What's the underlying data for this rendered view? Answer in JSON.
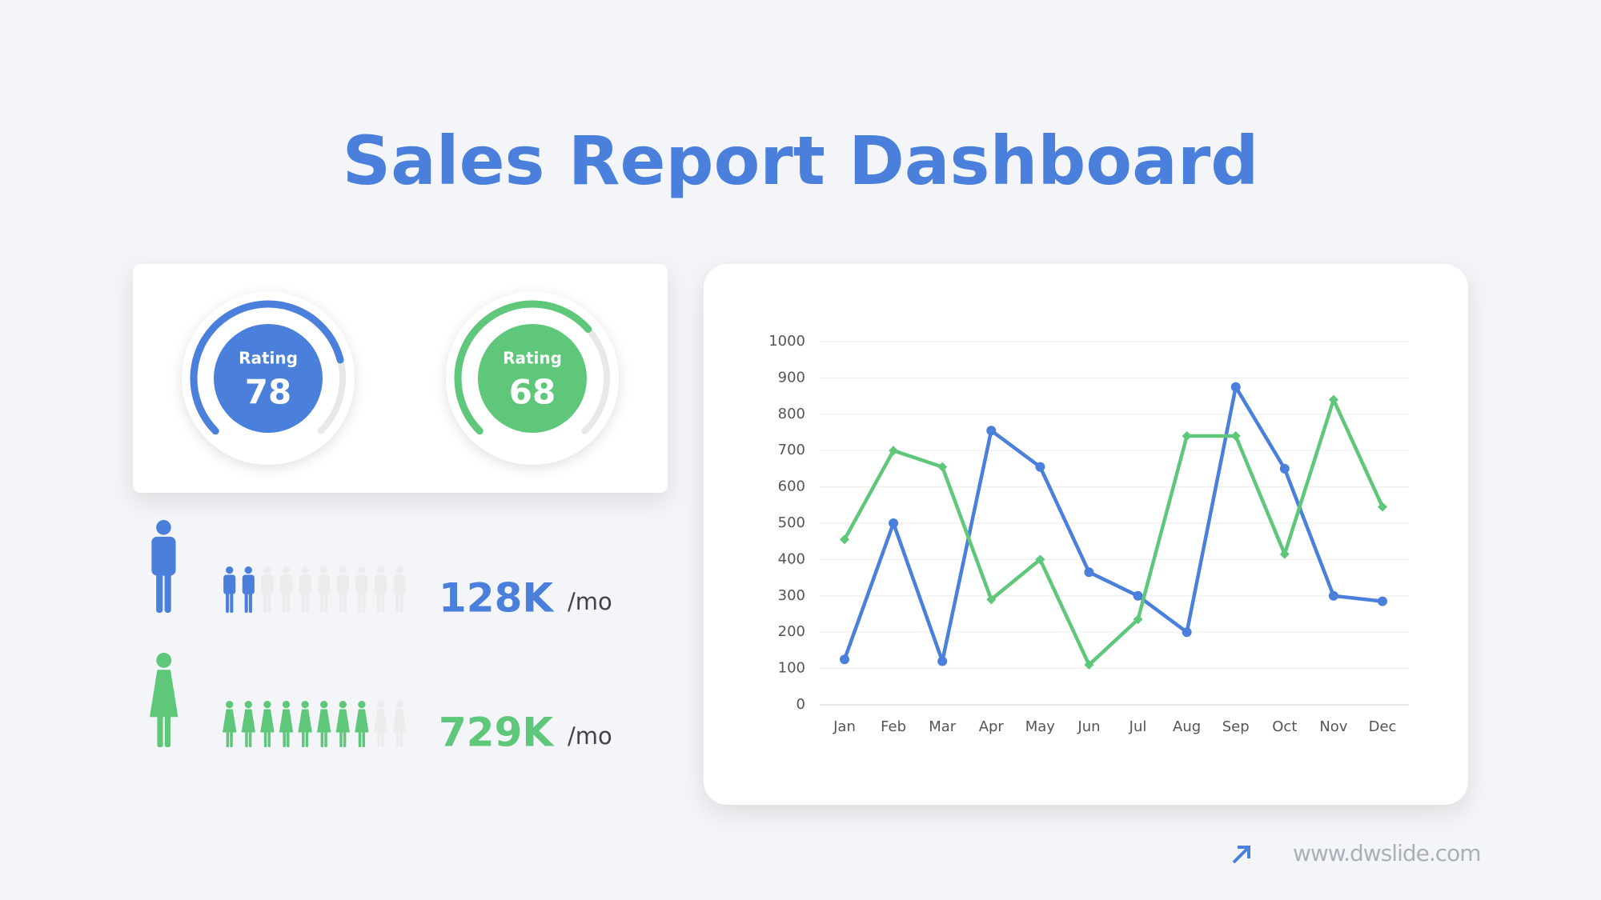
{
  "title": "Sales Report Dashboard",
  "gauge_range": [
    0,
    100
  ],
  "gauges": [
    {
      "label": "Rating",
      "value": 78,
      "color": "#4a7fdb"
    },
    {
      "label": "Rating",
      "value": 68,
      "color": "#5ec77a"
    }
  ],
  "people": [
    {
      "icon": "male",
      "color": "#4a7fdb",
      "filled": 2,
      "total": 10,
      "value": "128K",
      "unit": "/mo"
    },
    {
      "icon": "female",
      "color": "#5ec77a",
      "filled": 8,
      "total": 10,
      "value": "729K",
      "unit": "/mo"
    }
  ],
  "chart_data": {
    "type": "line",
    "categories": [
      "Jan",
      "Feb",
      "Mar",
      "Apr",
      "May",
      "Jun",
      "Jul",
      "Aug",
      "Sep",
      "Oct",
      "Nov",
      "Dec"
    ],
    "series": [
      {
        "color": "#4a7fdb",
        "marker": "circle",
        "values": [
          125,
          500,
          120,
          755,
          655,
          365,
          300,
          200,
          875,
          650,
          300,
          285
        ]
      },
      {
        "color": "#5ec77a",
        "marker": "diamond",
        "values": [
          455,
          700,
          655,
          290,
          400,
          110,
          235,
          740,
          740,
          415,
          840,
          545
        ]
      }
    ],
    "ylim": [
      0,
      1000
    ],
    "yticks": [
      0,
      100,
      200,
      300,
      400,
      500,
      600,
      700,
      800,
      900,
      1000
    ],
    "grid": true
  },
  "footer": "www.dwslide.com"
}
